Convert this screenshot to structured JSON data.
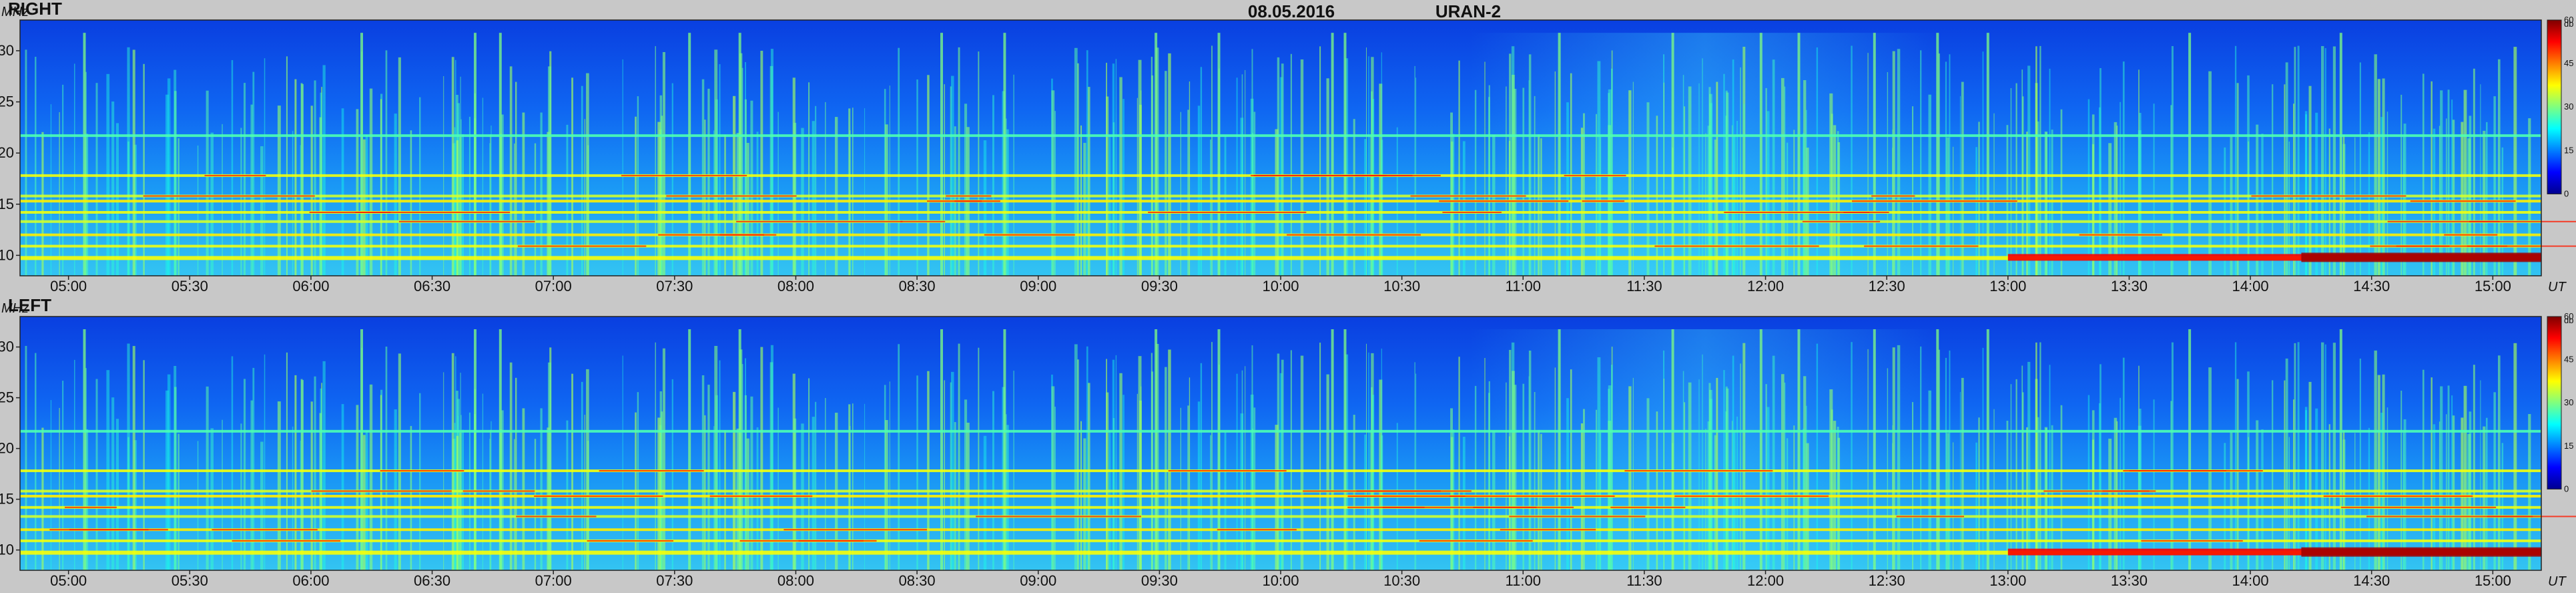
{
  "header": {
    "date": "08.05.2016",
    "instrument": "URAN-2"
  },
  "chart_data": [
    {
      "type": "heatmap",
      "title": "RIGHT",
      "xlabel": "UT",
      "ylabel": "MHz",
      "x_ticks": [
        "05:00",
        "05:30",
        "06:00",
        "06:30",
        "07:00",
        "07:30",
        "08:00",
        "08:30",
        "09:00",
        "09:30",
        "10:00",
        "10:30",
        "11:00",
        "11:30",
        "12:00",
        "12:30",
        "13:00",
        "13:30",
        "14:00",
        "14:30",
        "15:00"
      ],
      "x_range": [
        "04:48",
        "15:12"
      ],
      "y_ticks": [
        10,
        15,
        20,
        25,
        30
      ],
      "y_range": [
        8,
        33
      ],
      "colorbar": {
        "unit": "db",
        "ticks": [
          0,
          15,
          30,
          45,
          60
        ],
        "range": [
          0,
          60
        ]
      },
      "features": {
        "bands_mhz": [
          9.8,
          10.9,
          12.0,
          13.3,
          14.2,
          15.3,
          15.8,
          17.8,
          21.7
        ],
        "strong_band_mhz": 9.8,
        "strong_band_from": "13:00",
        "enhanced_period": [
          "11:00",
          "12:30"
        ]
      }
    },
    {
      "type": "heatmap",
      "title": "LEFT",
      "xlabel": "UT",
      "ylabel": "MHz",
      "x_ticks": [
        "05:00",
        "05:30",
        "06:00",
        "06:30",
        "07:00",
        "07:30",
        "08:00",
        "08:30",
        "09:00",
        "09:30",
        "10:00",
        "10:30",
        "11:00",
        "11:30",
        "12:00",
        "12:30",
        "13:00",
        "13:30",
        "14:00",
        "14:30",
        "15:00"
      ],
      "x_range": [
        "04:48",
        "15:12"
      ],
      "y_ticks": [
        10,
        15,
        20,
        25,
        30
      ],
      "y_range": [
        8,
        33
      ],
      "colorbar": {
        "unit": "db",
        "ticks": [
          0,
          15,
          30,
          45,
          60
        ],
        "range": [
          0,
          60
        ]
      },
      "features": {
        "bands_mhz": [
          9.8,
          10.9,
          12.0,
          13.3,
          14.2,
          15.3,
          15.8,
          17.8,
          21.7
        ],
        "strong_band_mhz": 9.8,
        "strong_band_from": "13:00",
        "enhanced_period": [
          "11:00",
          "12:30"
        ]
      }
    }
  ]
}
